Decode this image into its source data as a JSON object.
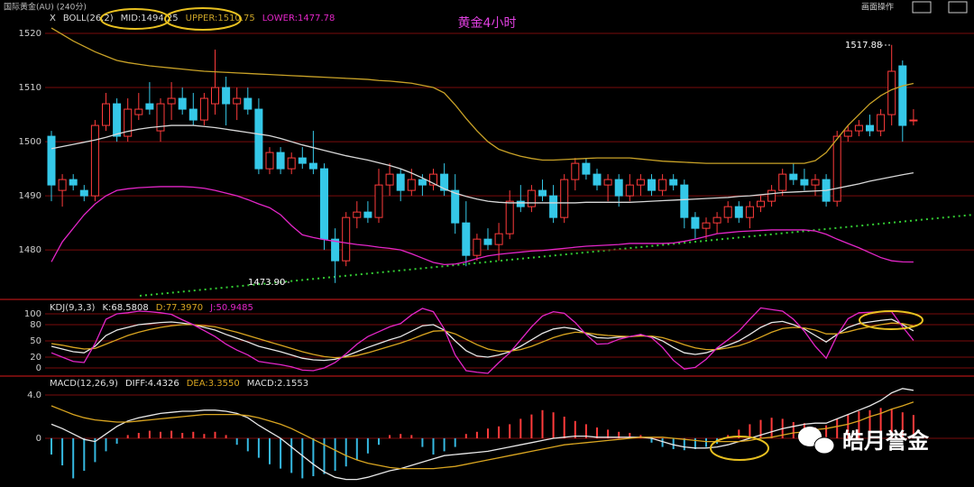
{
  "header": {
    "instrument": "国际黄金(AU) (240分)",
    "toolbar": "画面操作"
  },
  "watermark": "皓月誉金",
  "chart_data": [
    {
      "type": "candlestick",
      "title": "黄金4小时",
      "close_button": "X",
      "indicator": "BOLL(26,2)",
      "up_color": "#ff3b3b",
      "down_color": "#35c8e8",
      "open": [
        1501,
        1491,
        1493,
        1491,
        1490,
        1503,
        1507,
        1501,
        1505,
        1507,
        1502,
        1507,
        1508,
        1506,
        1504,
        1507,
        1510,
        1507,
        1508,
        1506,
        1495,
        1498,
        1495,
        1497,
        1496,
        1495,
        1482,
        1478,
        1486,
        1487,
        1486,
        1492,
        1494,
        1491,
        1493,
        1492,
        1494,
        1491,
        1485,
        1479,
        1482,
        1481,
        1483,
        1489,
        1488,
        1491,
        1490,
        1486,
        1493,
        1496,
        1494,
        1492,
        1493,
        1490,
        1492,
        1493,
        1491,
        1493,
        1492,
        1486,
        1484,
        1485,
        1486,
        1488,
        1486,
        1488,
        1489,
        1491,
        1494,
        1493,
        1492,
        1493,
        1489,
        1501,
        1502,
        1503,
        1502,
        1505,
        1514,
        1504
      ],
      "high": [
        1502,
        1494,
        1494,
        1492,
        1504,
        1509,
        1508,
        1508,
        1509,
        1511,
        1508,
        1511,
        1510,
        1509,
        1509,
        1517,
        1512,
        1510,
        1510,
        1508,
        1499,
        1499,
        1498,
        1499,
        1502,
        1496,
        1484,
        1487,
        1489,
        1489,
        1495,
        1496,
        1495,
        1495,
        1494,
        1495,
        1496,
        1494,
        1489,
        1483,
        1484,
        1485,
        1491,
        1492,
        1492,
        1493,
        1492,
        1494,
        1497,
        1497,
        1495,
        1494,
        1494,
        1494,
        1494,
        1494,
        1494,
        1494,
        1493,
        1487,
        1486,
        1487,
        1489,
        1489,
        1489,
        1490,
        1492,
        1495,
        1496,
        1495,
        1494,
        1494,
        1502,
        1503,
        1504,
        1505,
        1506,
        1517.88,
        1515,
        1506
      ],
      "low": [
        1489,
        1488,
        1491,
        1489,
        1489,
        1502,
        1500,
        1500,
        1504,
        1505,
        1500,
        1504,
        1505,
        1503,
        1503,
        1505,
        1503,
        1504,
        1505,
        1494,
        1494,
        1494,
        1494,
        1495,
        1494,
        1480,
        1473.9,
        1477,
        1484,
        1485,
        1485,
        1490,
        1489,
        1490,
        1490,
        1491,
        1490,
        1483,
        1477,
        1478,
        1480,
        1478,
        1482,
        1487,
        1487,
        1489,
        1485,
        1485,
        1491,
        1493,
        1491,
        1489,
        1488,
        1489,
        1490,
        1490,
        1490,
        1491,
        1484,
        1482,
        1482,
        1483,
        1485,
        1485,
        1484,
        1487,
        1488,
        1490,
        1492,
        1491,
        1490,
        1488,
        1488,
        1500,
        1501,
        1501,
        1501,
        1503,
        1500,
        1503
      ],
      "close": [
        1492,
        1493,
        1492,
        1490,
        1503,
        1507,
        1501,
        1506,
        1506,
        1506,
        1507,
        1508,
        1506,
        1504,
        1508,
        1510,
        1507,
        1508,
        1506,
        1495,
        1498,
        1495,
        1497,
        1496,
        1495,
        1482,
        1478,
        1486,
        1487,
        1486,
        1492,
        1494,
        1491,
        1493,
        1492,
        1494,
        1491,
        1485,
        1479,
        1482,
        1481,
        1483,
        1489,
        1488,
        1491,
        1490,
        1486,
        1493,
        1496,
        1494,
        1492,
        1493,
        1490,
        1492,
        1493,
        1491,
        1493,
        1492,
        1486,
        1484,
        1485,
        1486,
        1488,
        1486,
        1488,
        1489,
        1491,
        1494,
        1493,
        1492,
        1493,
        1489,
        1501,
        1502,
        1503,
        1502,
        1505,
        1513,
        1503,
        1504
      ],
      "lines": [
        {
          "label": "MID:1494.25",
          "color": "#d8d8d8",
          "values": [
            1498.7,
            1499.1,
            1499.5,
            1499.9,
            1500.3,
            1500.8,
            1501.4,
            1501.9,
            1502.3,
            1502.6,
            1502.8,
            1503.0,
            1503.0,
            1503.0,
            1502.8,
            1502.6,
            1502.3,
            1502.0,
            1501.7,
            1501.4,
            1501.1,
            1500.6,
            1500.0,
            1499.4,
            1498.9,
            1498.4,
            1497.9,
            1497.4,
            1497.0,
            1496.6,
            1496.1,
            1495.6,
            1495.0,
            1494.2,
            1493.3,
            1492.3,
            1491.3,
            1490.5,
            1489.9,
            1489.4,
            1489.0,
            1488.8,
            1488.7,
            1488.7,
            1488.7,
            1488.7,
            1488.7,
            1488.7,
            1488.7,
            1488.8,
            1488.8,
            1488.8,
            1488.8,
            1488.8,
            1488.9,
            1489.0,
            1489.1,
            1489.2,
            1489.3,
            1489.4,
            1489.5,
            1489.6,
            1489.7,
            1489.9,
            1490.0,
            1490.2,
            1490.4,
            1490.6,
            1490.7,
            1490.8,
            1490.9,
            1491.0,
            1491.4,
            1491.8,
            1492.2,
            1492.7,
            1493.1,
            1493.5,
            1493.9,
            1494.25
          ]
        },
        {
          "label": "UPPER:1510.75",
          "color": "#c9a227",
          "values": [
            1521.0,
            1519.8,
            1518.6,
            1517.6,
            1516.6,
            1515.8,
            1515.0,
            1514.6,
            1514.3,
            1514.0,
            1513.8,
            1513.6,
            1513.4,
            1513.2,
            1513.0,
            1512.9,
            1512.8,
            1512.7,
            1512.6,
            1512.5,
            1512.4,
            1512.3,
            1512.2,
            1512.1,
            1512.0,
            1511.9,
            1511.8,
            1511.7,
            1511.6,
            1511.5,
            1511.3,
            1511.2,
            1511.0,
            1510.8,
            1510.4,
            1510.0,
            1509.0,
            1506.8,
            1504.3,
            1502.0,
            1500.0,
            1498.6,
            1497.9,
            1497.3,
            1496.9,
            1496.6,
            1496.6,
            1496.7,
            1496.8,
            1496.9,
            1497.0,
            1497.0,
            1497.0,
            1497.0,
            1496.8,
            1496.6,
            1496.4,
            1496.3,
            1496.2,
            1496.1,
            1496.0,
            1496.0,
            1496.0,
            1496.0,
            1496.0,
            1496.0,
            1496.0,
            1496.0,
            1496.0,
            1496.0,
            1496.5,
            1498.0,
            1500.5,
            1503.0,
            1505.0,
            1507.0,
            1508.5,
            1509.6,
            1510.3,
            1510.75
          ]
        },
        {
          "label": "LOWER:1477.78",
          "color": "#e426c8",
          "values": [
            1477.8,
            1481.5,
            1484.0,
            1486.5,
            1488.5,
            1490.0,
            1491.0,
            1491.3,
            1491.5,
            1491.6,
            1491.7,
            1491.7,
            1491.7,
            1491.6,
            1491.4,
            1491.0,
            1490.5,
            1490.0,
            1489.3,
            1488.5,
            1487.8,
            1486.5,
            1484.5,
            1482.8,
            1482.3,
            1481.9,
            1481.6,
            1481.3,
            1481.0,
            1480.8,
            1480.5,
            1480.3,
            1480.0,
            1479.3,
            1478.5,
            1477.7,
            1477.3,
            1477.4,
            1477.8,
            1478.4,
            1478.9,
            1479.2,
            1479.4,
            1479.6,
            1479.8,
            1479.9,
            1480.1,
            1480.3,
            1480.5,
            1480.7,
            1480.8,
            1480.9,
            1481.0,
            1481.2,
            1481.2,
            1481.2,
            1481.2,
            1481.3,
            1481.6,
            1482.0,
            1482.5,
            1483.0,
            1483.2,
            1483.4,
            1483.5,
            1483.6,
            1483.7,
            1483.7,
            1483.7,
            1483.7,
            1483.5,
            1482.9,
            1482.0,
            1481.2,
            1480.4,
            1479.5,
            1478.6,
            1478.0,
            1477.8,
            1477.78
          ]
        }
      ],
      "ylim": [
        1471.2,
        1522.5
      ],
      "yticks": [
        1480,
        1490,
        1500,
        1510,
        1520
      ],
      "grid": true,
      "annotations": [
        {
          "text": "1517.88"
        },
        {
          "text": "1473.90"
        }
      ]
    },
    {
      "type": "line",
      "indicator": "KDJ(9,3,3)",
      "lines": [
        {
          "label": "K:68.5808",
          "color": "#e8e8e8",
          "values": [
            40,
            35,
            30,
            28,
            40,
            60,
            70,
            75,
            80,
            82,
            84,
            85,
            83,
            80,
            75,
            70,
            62,
            55,
            48,
            40,
            35,
            30,
            24,
            18,
            15,
            14,
            16,
            22,
            30,
            38,
            45,
            52,
            58,
            68,
            78,
            80,
            70,
            50,
            32,
            22,
            20,
            24,
            30,
            40,
            52,
            64,
            72,
            75,
            72,
            64,
            56,
            55,
            57,
            58,
            60,
            58,
            50,
            38,
            28,
            25,
            28,
            35,
            42,
            50,
            62,
            75,
            84,
            86,
            80,
            72,
            60,
            48,
            62,
            75,
            82,
            85,
            88,
            90,
            80,
            68.58
          ]
        },
        {
          "label": "D:77.3970",
          "color": "#d9a520",
          "values": [
            45,
            42,
            38,
            35,
            36,
            44,
            52,
            60,
            66,
            71,
            75,
            78,
            80,
            80,
            78,
            76,
            71,
            66,
            60,
            54,
            48,
            42,
            36,
            30,
            25,
            21,
            19,
            20,
            23,
            28,
            34,
            40,
            46,
            53,
            61,
            68,
            69,
            63,
            53,
            43,
            35,
            31,
            31,
            34,
            40,
            48,
            56,
            62,
            66,
            65,
            62,
            60,
            59,
            58,
            59,
            59,
            56,
            50,
            43,
            37,
            34,
            34,
            37,
            41,
            48,
            57,
            66,
            73,
            75,
            74,
            70,
            63,
            63,
            67,
            72,
            76,
            80,
            83,
            82,
            77.4
          ]
        },
        {
          "label": "J:50.9485",
          "color": "#e426c8",
          "values": [
            28,
            20,
            12,
            10,
            45,
            90,
            100,
            102,
            105,
            104,
            102,
            99,
            89,
            80,
            69,
            58,
            44,
            33,
            24,
            12,
            9,
            6,
            2,
            -4,
            -5,
            0,
            10,
            26,
            44,
            58,
            67,
            76,
            82,
            98,
            110,
            104,
            72,
            24,
            -5,
            -8,
            -10,
            10,
            28,
            52,
            76,
            96,
            104,
            101,
            84,
            62,
            44,
            45,
            53,
            58,
            62,
            56,
            38,
            14,
            -2,
            1,
            16,
            37,
            52,
            68,
            90,
            111,
            108,
            105,
            90,
            68,
            40,
            18,
            60,
            91,
            102,
            103,
            104,
            104,
            76,
            50.95
          ]
        }
      ],
      "ylim": [
        -11.7,
        121.7
      ],
      "yticks": [
        0,
        20,
        50,
        80,
        100
      ],
      "grid": true
    },
    {
      "type": "bar",
      "indicator": "MACD(12,26,9)",
      "label": "MACD:2.1553",
      "up_color": "#ff3b3b",
      "down_color": "#35b8e0",
      "values": [
        -1.5,
        -2.5,
        -3.7,
        -3.0,
        -2.2,
        -1.2,
        -0.5,
        0.3,
        0.5,
        0.7,
        0.6,
        0.7,
        0.5,
        0.6,
        0.4,
        0.6,
        0.3,
        -0.6,
        -1.2,
        -1.8,
        -2.4,
        -2.8,
        -3.2,
        -3.7,
        -3.5,
        -3.3,
        -3.0,
        -2.6,
        -2.0,
        -1.4,
        -0.6,
        0.3,
        0.4,
        0.3,
        -0.8,
        -1.5,
        -1.2,
        -0.8,
        0.4,
        0.6,
        0.9,
        1.1,
        1.3,
        1.8,
        2.2,
        2.6,
        2.4,
        2.0,
        1.6,
        1.3,
        1.0,
        0.8,
        0.6,
        0.5,
        0.3,
        -0.4,
        -0.8,
        -1.0,
        -1.1,
        -1.0,
        -0.8,
        -0.5,
        0.3,
        0.8,
        1.3,
        1.7,
        1.9,
        1.8,
        1.5,
        1.4,
        1.0,
        1.2,
        1.8,
        2.2,
        2.5,
        2.6,
        2.8,
        2.7,
        2.4,
        2.1553
      ],
      "lines": [
        {
          "label": "DIFF:4.4326",
          "color": "#e8e8e8",
          "values": [
            1.3,
            0.9,
            0.4,
            -0.1,
            -0.3,
            0.4,
            1.1,
            1.6,
            1.9,
            2.1,
            2.3,
            2.4,
            2.5,
            2.5,
            2.6,
            2.6,
            2.5,
            2.3,
            1.9,
            1.2,
            0.6,
            0.0,
            -0.8,
            -1.6,
            -2.4,
            -3.1,
            -3.6,
            -3.8,
            -3.8,
            -3.6,
            -3.3,
            -3.0,
            -2.8,
            -2.5,
            -2.2,
            -1.9,
            -1.6,
            -1.5,
            -1.4,
            -1.3,
            -1.2,
            -1.0,
            -0.8,
            -0.6,
            -0.4,
            -0.2,
            0.0,
            0.1,
            0.2,
            0.2,
            0.1,
            0.1,
            0.1,
            0.1,
            0.1,
            0.0,
            -0.3,
            -0.6,
            -0.8,
            -0.9,
            -0.9,
            -0.8,
            -0.6,
            -0.3,
            0.0,
            0.3,
            0.6,
            0.9,
            1.1,
            1.3,
            1.4,
            1.4,
            1.8,
            2.2,
            2.6,
            3.0,
            3.5,
            4.2,
            4.6,
            4.4326
          ]
        },
        {
          "label": "DEA:3.3550",
          "color": "#d9a520",
          "values": [
            3.0,
            2.6,
            2.2,
            1.9,
            1.7,
            1.6,
            1.5,
            1.5,
            1.6,
            1.7,
            1.8,
            1.9,
            2.0,
            2.1,
            2.2,
            2.2,
            2.2,
            2.2,
            2.1,
            1.9,
            1.6,
            1.3,
            0.9,
            0.4,
            -0.1,
            -0.6,
            -1.1,
            -1.6,
            -2.0,
            -2.3,
            -2.5,
            -2.7,
            -2.8,
            -2.8,
            -2.8,
            -2.8,
            -2.7,
            -2.6,
            -2.4,
            -2.2,
            -2.0,
            -1.8,
            -1.6,
            -1.4,
            -1.2,
            -1.0,
            -0.8,
            -0.6,
            -0.5,
            -0.4,
            -0.3,
            -0.2,
            -0.1,
            0.0,
            0.1,
            0.1,
            0.1,
            0.0,
            -0.1,
            -0.2,
            -0.3,
            -0.3,
            -0.3,
            -0.3,
            -0.2,
            0.0,
            0.1,
            0.3,
            0.5,
            0.6,
            0.8,
            0.9,
            1.1,
            1.3,
            1.6,
            2.0,
            2.3,
            2.7,
            3.0,
            3.355
          ]
        }
      ],
      "ylim": [
        -4.5,
        5.5
      ],
      "yticks": [
        0,
        {
          "value": 4,
          "label": "4.0"
        }
      ],
      "grid": true
    }
  ]
}
